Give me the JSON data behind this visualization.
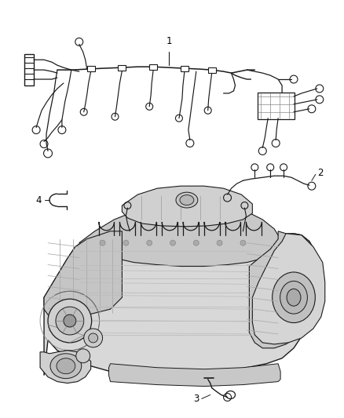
{
  "background_color": "#ffffff",
  "fig_width": 4.38,
  "fig_height": 5.33,
  "dpi": 100,
  "label_fontsize": 8.5,
  "line_color": "#1a1a1a",
  "line_width": 0.8
}
